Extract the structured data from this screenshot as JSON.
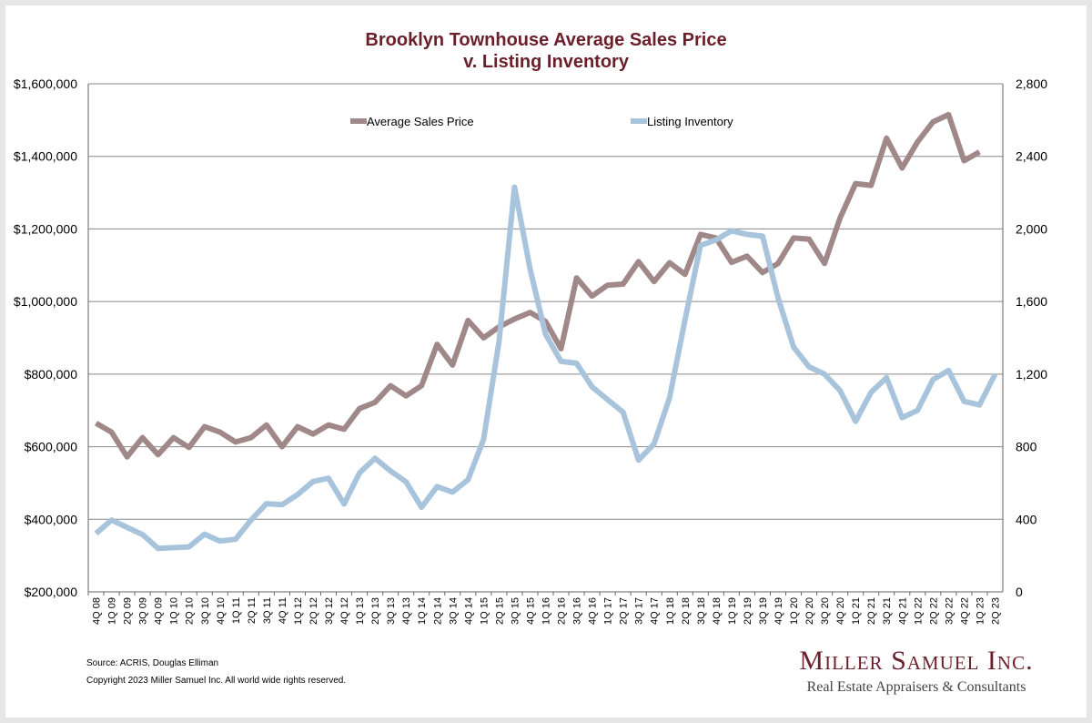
{
  "chart_data": {
    "type": "line",
    "title": "Brooklyn Townhouse Average Sales Price\nv. Listing Inventory",
    "title_lines": [
      "Brooklyn Townhouse Average Sales Price",
      "v. Listing Inventory"
    ],
    "legend_placement": "top",
    "grid": true,
    "categories": [
      "4Q 08",
      "1Q 09",
      "2Q 09",
      "3Q 09",
      "4Q 09",
      "1Q 10",
      "2Q 10",
      "3Q 10",
      "4Q 10",
      "1Q 11",
      "2Q 11",
      "3Q 11",
      "4Q 11",
      "1Q 12",
      "2Q 12",
      "3Q 12",
      "4Q 12",
      "1Q 13",
      "2Q 13",
      "3Q 13",
      "4Q 13",
      "1Q 14",
      "2Q 14",
      "3Q 14",
      "4Q 14",
      "1Q 15",
      "2Q 15",
      "3Q 15",
      "4Q 15",
      "1Q 16",
      "2Q 16",
      "3Q 16",
      "4Q 16",
      "1Q 17",
      "2Q 17",
      "3Q 17",
      "4Q 17",
      "1Q 18",
      "2Q 18",
      "3Q 18",
      "4Q 18",
      "1Q 19",
      "2Q 19",
      "3Q 19",
      "4Q 19",
      "1Q 20",
      "2Q 20",
      "3Q 20",
      "4Q 20",
      "1Q 21",
      "2Q 21",
      "3Q 21",
      "4Q 21",
      "1Q 22",
      "2Q 22",
      "3Q 22",
      "4Q 22",
      "1Q 23",
      "2Q 23"
    ],
    "y_left": {
      "min": 200000,
      "max": 1600000,
      "ticks": [
        "$200,000",
        "$400,000",
        "$600,000",
        "$800,000",
        "$1,000,000",
        "$1,200,000",
        "$1,400,000",
        "$1,600,000"
      ]
    },
    "y_right": {
      "min": 0,
      "max": 2800,
      "ticks": [
        "0",
        "400",
        "800",
        "1,200",
        "1,600",
        "2,000",
        "2,400",
        "2,800"
      ]
    },
    "series": [
      {
        "name": "Average Sales Price",
        "axis": "left",
        "color": "#a08888",
        "values": [
          665000,
          640000,
          572000,
          625000,
          578000,
          625000,
          598000,
          655000,
          640000,
          613000,
          625000,
          660000,
          600000,
          655000,
          635000,
          660000,
          648000,
          705000,
          722000,
          768000,
          740000,
          768000,
          882000,
          825000,
          948000,
          900000,
          930000,
          952000,
          970000,
          945000,
          870000,
          1065000,
          1015000,
          1045000,
          1048000,
          1110000,
          1055000,
          1107000,
          1075000,
          1185000,
          1175000,
          1108000,
          1125000,
          1080000,
          1105000,
          1175000,
          1172000,
          1105000,
          1230000,
          1325000,
          1320000,
          1450000,
          1368000,
          1440000,
          1495000,
          1515000,
          1388000,
          1412000,
          null
        ]
      },
      {
        "name": "Listing Inventory",
        "axis": "right",
        "color": "#a7c4dc",
        "values": [
          322,
          396,
          356,
          316,
          240,
          244,
          248,
          318,
          280,
          290,
          396,
          486,
          480,
          536,
          608,
          626,
          484,
          656,
          736,
          666,
          606,
          466,
          580,
          550,
          618,
          840,
          1380,
          2230,
          1780,
          1420,
          1270,
          1260,
          1130,
          1060,
          990,
          726,
          816,
          1070,
          1500,
          1910,
          1940,
          1990,
          1970,
          1960,
          1620,
          1350,
          1240,
          1200,
          1110,
          940,
          1100,
          1180,
          960,
          1000,
          1170,
          1220,
          1050,
          1030,
          1200
        ]
      }
    ]
  },
  "footer": {
    "source": "Source: ACRIS, Douglas Elliman",
    "copyright": "Copyright 2023 Miller Samuel Inc.  All world wide rights reserved."
  },
  "brand": {
    "name": "Miller Samuel Inc.",
    "tagline": "Real Estate Appraisers & Consultants"
  }
}
